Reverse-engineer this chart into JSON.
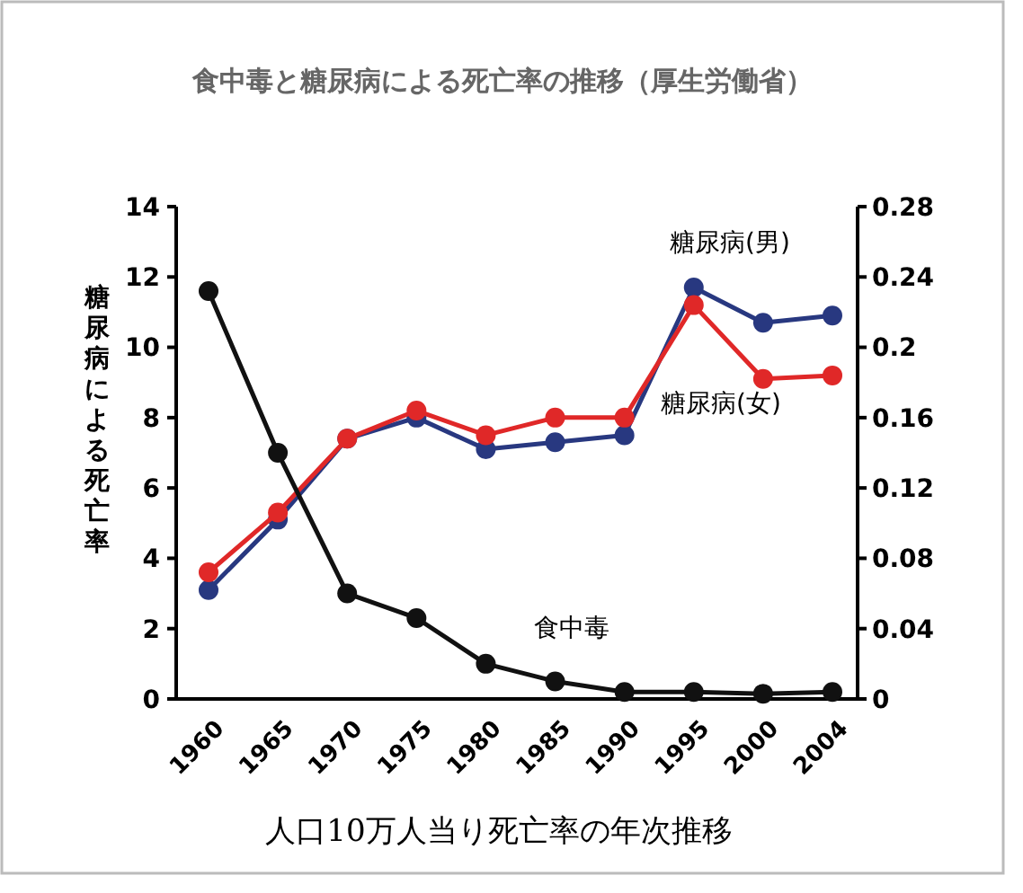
{
  "chart_data": {
    "type": "line",
    "title": "食中毒と糖尿病による死亡率の推移（厚生労働省）",
    "xlabel": "人口10万人当り死亡率の年次推移",
    "ylabel": "糖尿病による死亡率",
    "categories": [
      "1960",
      "1965",
      "1970",
      "1975",
      "1980",
      "1985",
      "1990",
      "1995",
      "2000",
      "2004"
    ],
    "series": [
      {
        "name": "糖尿病(男)",
        "color": "#283880",
        "values": [
          3.1,
          5.1,
          7.4,
          8.0,
          7.1,
          7.3,
          7.5,
          11.7,
          10.7,
          10.9
        ]
      },
      {
        "name": "糖尿病(女)",
        "color": "#e02828",
        "values": [
          3.6,
          5.3,
          7.4,
          8.2,
          7.5,
          8.0,
          8.0,
          11.2,
          9.1,
          9.2
        ]
      },
      {
        "name": "食中毒",
        "color": "#111111",
        "axis": "y2",
        "values": [
          0.232,
          0.14,
          0.06,
          0.046,
          0.02,
          0.01,
          0.004,
          0.004,
          0.003,
          0.004
        ]
      }
    ],
    "ylim": [
      0,
      14
    ],
    "yticks": [
      0,
      2,
      4,
      6,
      8,
      10,
      12,
      14
    ],
    "y2lim": [
      0,
      0.28
    ],
    "y2ticks": [
      0,
      0.04,
      0.08,
      0.12,
      0.16,
      0.2,
      0.24,
      0.28
    ],
    "marker": "circle",
    "line_style": "solid",
    "grid": false
  }
}
